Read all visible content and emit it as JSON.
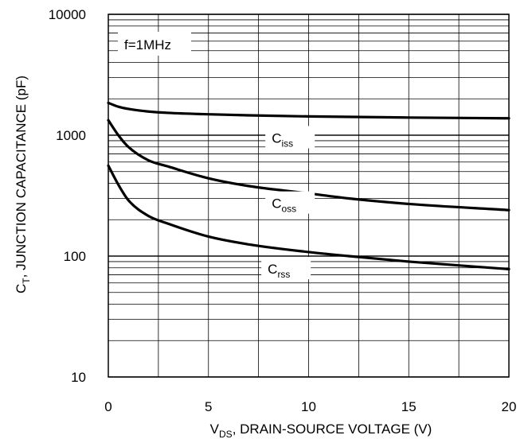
{
  "chart_data": {
    "type": "line",
    "title": "",
    "xlabel": {
      "main": "V",
      "sub": "DS",
      "rest": ", DRAIN-SOURCE VOLTAGE (V)"
    },
    "ylabel": {
      "main": "C",
      "sub": "T",
      "rest": ", JUNCTION CAPACITANCE (pF)"
    },
    "xlim": [
      0,
      20
    ],
    "ylim": [
      10,
      10000
    ],
    "yscale": "log",
    "grid": true,
    "x_ticks": [
      "0",
      "5",
      "10",
      "15",
      "20"
    ],
    "y_ticks": [
      "10",
      "100",
      "1000",
      "10000"
    ],
    "annotation": "f=1MHz",
    "series": [
      {
        "name": "Ciss",
        "label_main": "C",
        "label_sub": "iss",
        "x": [
          0,
          0.5,
          1,
          2,
          3,
          5,
          7,
          10,
          15,
          20
        ],
        "values": [
          1850,
          1720,
          1650,
          1570,
          1530,
          1490,
          1460,
          1430,
          1400,
          1380
        ]
      },
      {
        "name": "Coss",
        "label_main": "C",
        "label_sub": "oss",
        "x": [
          0,
          0.5,
          1,
          2,
          3,
          5,
          7,
          10,
          12,
          15,
          20
        ],
        "values": [
          1330,
          1000,
          800,
          620,
          550,
          440,
          380,
          330,
          300,
          270,
          240
        ]
      },
      {
        "name": "Crss",
        "label_main": "C",
        "label_sub": "rss",
        "x": [
          0,
          0.5,
          1,
          2,
          3,
          5,
          7,
          10,
          12,
          15,
          20
        ],
        "values": [
          560,
          390,
          290,
          215,
          185,
          145,
          125,
          108,
          100,
          90,
          78
        ]
      }
    ]
  }
}
